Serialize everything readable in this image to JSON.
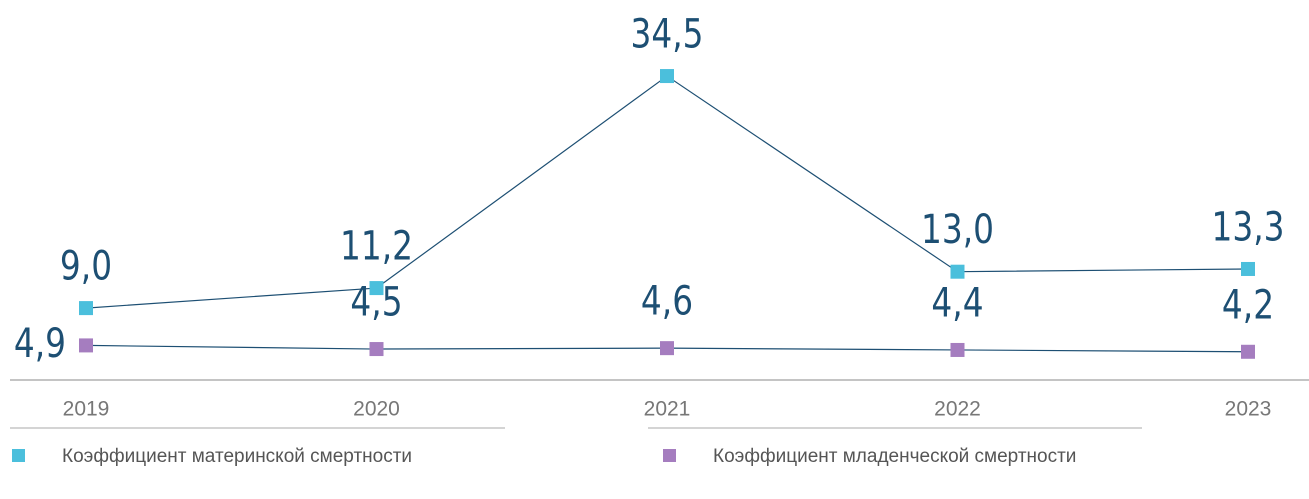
{
  "chart_data": {
    "type": "line",
    "categories": [
      "2019",
      "2020",
      "2021",
      "2022",
      "2023"
    ],
    "series": [
      {
        "name": "Коэффициент материнской смертности",
        "color": "#4bbfdc",
        "values": [
          9.0,
          11.2,
          34.5,
          13.0,
          13.3
        ],
        "value_labels": [
          "9,0",
          "11,2",
          "34,5",
          "13,0",
          "13,3"
        ]
      },
      {
        "name": "Коэффициент младенческой смертности",
        "color": "#a57dbf",
        "values": [
          4.9,
          4.5,
          4.6,
          4.4,
          4.2
        ],
        "value_labels": [
          "4,9",
          "4,5",
          "4,6",
          "4,4",
          "4,2"
        ]
      }
    ],
    "line_color": "#1d4f73"
  }
}
